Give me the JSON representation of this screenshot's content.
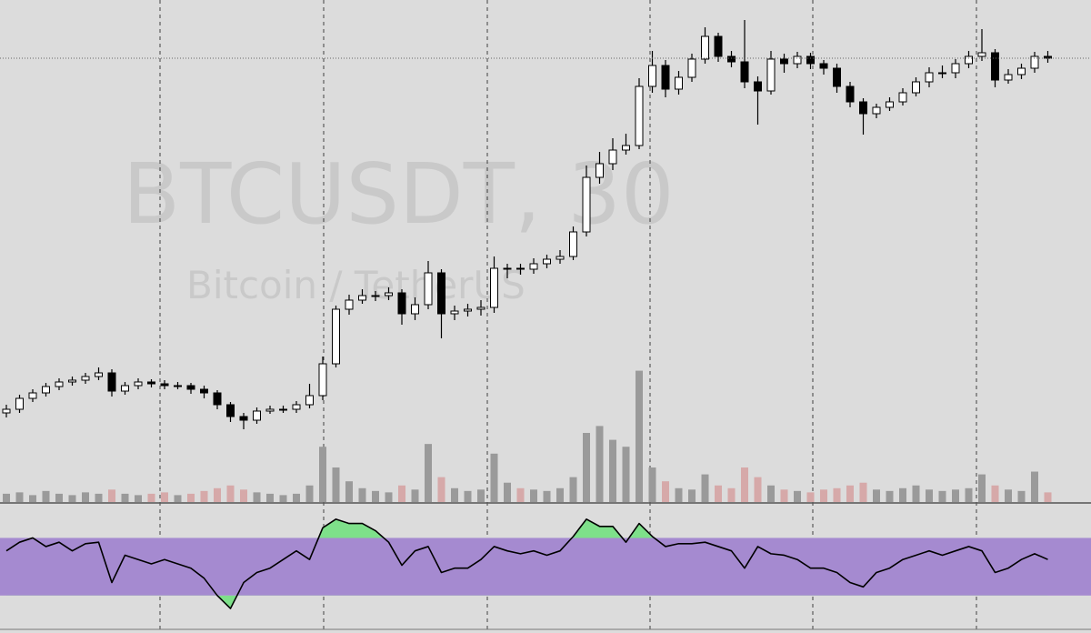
{
  "chart_data": {
    "type": "candlestick",
    "title": "BTCUSDT, 30",
    "subtitle": "Bitcoin / TetherUS",
    "open": [
      98,
      102,
      114,
      120,
      127,
      132,
      134,
      138,
      142,
      122,
      128,
      132,
      130,
      128,
      128,
      124,
      120,
      107,
      94,
      90,
      100,
      102,
      102,
      107,
      117,
      152,
      212,
      222,
      227,
      227,
      230,
      207,
      217,
      252,
      207,
      210,
      212,
      214,
      257,
      257,
      256,
      262,
      267,
      270,
      297,
      357,
      372,
      387,
      392,
      457,
      480,
      454,
      467,
      487,
      512,
      490,
      484,
      462,
      452,
      487,
      482,
      490,
      482,
      477,
      457,
      440,
      427,
      434,
      440,
      450,
      462,
      472,
      472,
      482,
      490,
      494,
      464,
      470,
      477,
      490
    ],
    "high": [
      107,
      118,
      124,
      131,
      136,
      138,
      142,
      148,
      146,
      132,
      136,
      135,
      134,
      132,
      131,
      128,
      123,
      110,
      98,
      104,
      106,
      106,
      111,
      130,
      160,
      216,
      228,
      234,
      232,
      236,
      234,
      225,
      265,
      256,
      216,
      218,
      222,
      270,
      262,
      262,
      268,
      272,
      277,
      303,
      370,
      385,
      400,
      405,
      466,
      496,
      486,
      474,
      493,
      522,
      516,
      496,
      530,
      468,
      496,
      493,
      495,
      494,
      486,
      482,
      462,
      444,
      438,
      445,
      455,
      467,
      478,
      480,
      487,
      496,
      520,
      498,
      476,
      482,
      495,
      496
    ],
    "low": [
      93,
      98,
      110,
      116,
      123,
      128,
      130,
      134,
      116,
      118,
      124,
      126,
      124,
      124,
      119,
      114,
      102,
      88,
      80,
      86,
      97,
      98,
      98,
      103,
      112,
      148,
      206,
      218,
      221,
      222,
      195,
      200,
      212,
      180,
      200,
      204,
      205,
      208,
      246,
      250,
      251,
      257,
      262,
      266,
      292,
      350,
      365,
      382,
      388,
      450,
      445,
      448,
      462,
      482,
      484,
      478,
      455,
      415,
      448,
      472,
      477,
      476,
      470,
      450,
      434,
      404,
      422,
      430,
      436,
      446,
      456,
      466,
      466,
      477,
      485,
      456,
      460,
      465,
      472,
      483
    ],
    "close": [
      102,
      114,
      120,
      127,
      132,
      134,
      138,
      142,
      122,
      128,
      132,
      130,
      128,
      128,
      124,
      120,
      107,
      94,
      90,
      100,
      102,
      102,
      107,
      117,
      152,
      212,
      222,
      227,
      227,
      230,
      207,
      217,
      252,
      207,
      210,
      212,
      214,
      257,
      257,
      256,
      262,
      267,
      270,
      297,
      357,
      372,
      387,
      392,
      457,
      480,
      454,
      467,
      487,
      512,
      490,
      484,
      462,
      452,
      487,
      482,
      490,
      482,
      477,
      457,
      440,
      427,
      434,
      440,
      450,
      462,
      472,
      472,
      482,
      490,
      494,
      464,
      470,
      477,
      490,
      488
    ],
    "volume": [
      6,
      7,
      5,
      8,
      6,
      5,
      7,
      6,
      9,
      6,
      5,
      6,
      7,
      5,
      6,
      8,
      10,
      12,
      9,
      7,
      6,
      5,
      6,
      12,
      40,
      25,
      15,
      10,
      8,
      7,
      12,
      9,
      42,
      18,
      10,
      8,
      9,
      35,
      14,
      10,
      9,
      8,
      10,
      18,
      50,
      55,
      45,
      40,
      95,
      25,
      15,
      10,
      9,
      20,
      12,
      10,
      25,
      18,
      12,
      9,
      8,
      7,
      9,
      10,
      12,
      14,
      9,
      8,
      10,
      12,
      9,
      8,
      9,
      10,
      20,
      12,
      9,
      8,
      22,
      7
    ],
    "up_color": "#ffffff",
    "down_color": "#000000",
    "volume_up_color": "#9a9a9a",
    "volume_down_color": "#d6a9a9",
    "ylim": [
      0,
      552
    ],
    "volume_ylim": [
      0,
      100
    ],
    "rsi": [
      61,
      67,
      70,
      64,
      67,
      61,
      66,
      67,
      39,
      58,
      55,
      52,
      55,
      52,
      49,
      42,
      30,
      21,
      39,
      46,
      49,
      55,
      61,
      55,
      77,
      83,
      80,
      80,
      75,
      67,
      51,
      61,
      64,
      46,
      49,
      49,
      55,
      64,
      61,
      59,
      61,
      58,
      61,
      71,
      83,
      78,
      78,
      67,
      80,
      71,
      64,
      66,
      66,
      67,
      64,
      61,
      49,
      64,
      59,
      58,
      55,
      49,
      49,
      46,
      39,
      36,
      46,
      49,
      55,
      58,
      61,
      58,
      61,
      64,
      61,
      46,
      49,
      55,
      59,
      55
    ],
    "rsi_ylim": [
      4,
      93
    ],
    "rsi_bands": [
      30,
      70
    ],
    "rsi_color": "#000000",
    "band_color": "#a58ad0",
    "extreme_color": "#7ee08a"
  }
}
